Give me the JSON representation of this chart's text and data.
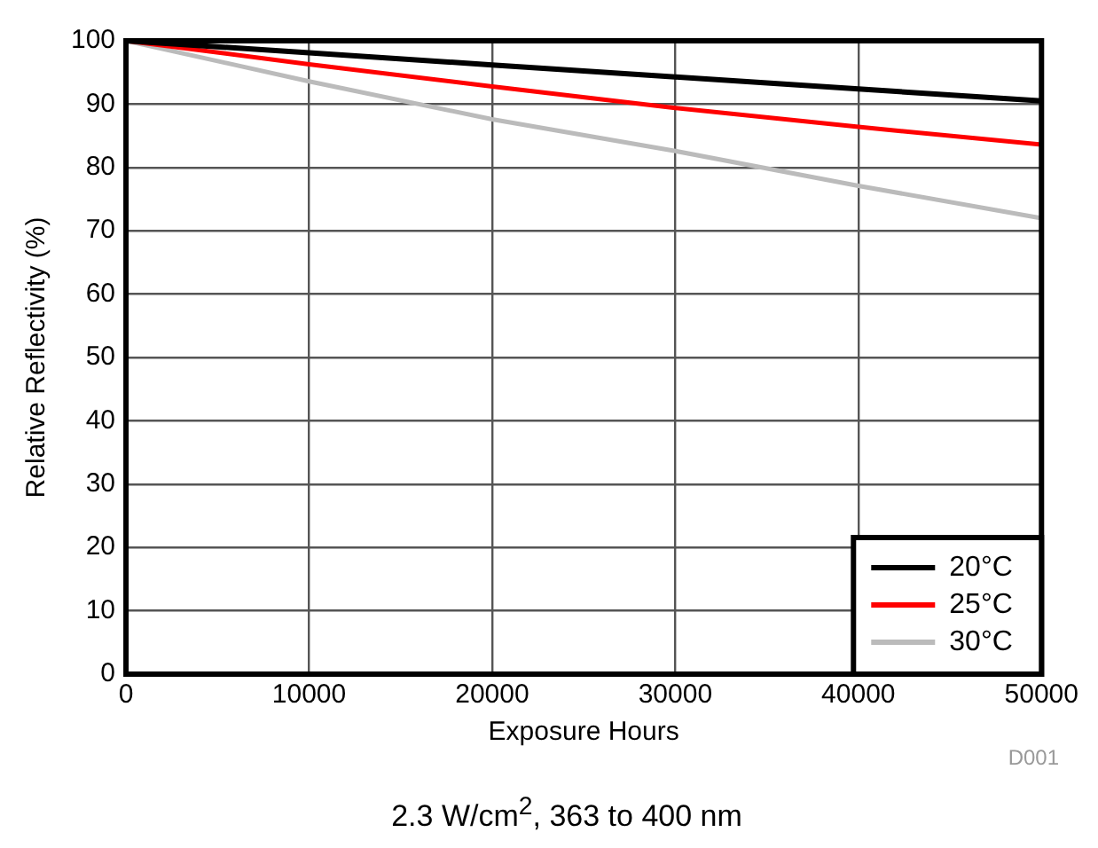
{
  "chart_data": {
    "type": "line",
    "xlabel": "Exposure Hours",
    "ylabel": "Relative Reflectivity (%)",
    "x": [
      0,
      10000,
      20000,
      30000,
      40000,
      50000
    ],
    "series": [
      {
        "name": "20°C",
        "color": "#000000",
        "values": [
          100,
          98.1,
          96.2,
          94.3,
          92.4,
          90.5
        ]
      },
      {
        "name": "25°C",
        "color": "#ff0000",
        "values": [
          100,
          96.3,
          92.8,
          89.4,
          86.4,
          83.6
        ]
      },
      {
        "name": "30°C",
        "color": "#bbbbbb",
        "values": [
          100,
          93.6,
          87.6,
          82.6,
          77.1,
          72.0
        ]
      }
    ],
    "xlim": [
      0,
      50000
    ],
    "xticks": [
      0,
      10000,
      20000,
      30000,
      40000,
      50000
    ],
    "ylim": [
      0,
      100
    ],
    "yticks": [
      0,
      10,
      20,
      30,
      40,
      50,
      60,
      70,
      80,
      90,
      100
    ],
    "grid": true,
    "legend": "bottom right",
    "marker": "none",
    "line_style": "solid",
    "annotations": [
      "2.3 W/cm$^{2}$, 363 to 400 nm",
      "D001"
    ]
  }
}
